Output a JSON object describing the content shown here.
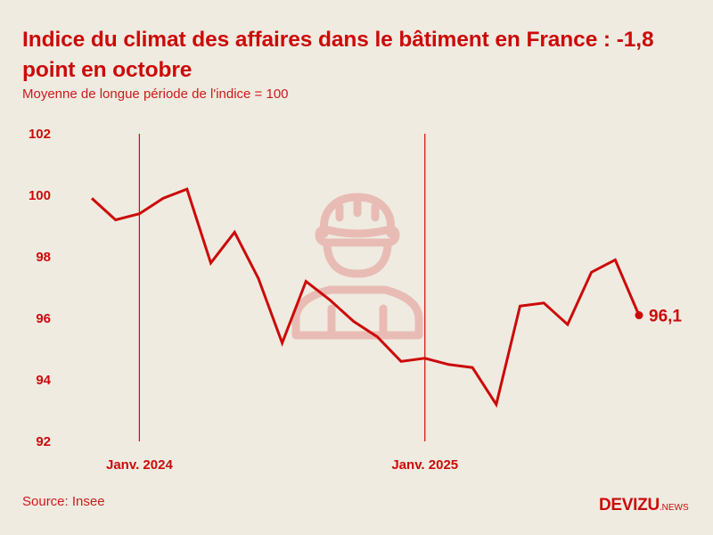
{
  "header": {
    "title": "Indice du climat des affaires dans le bâtiment en France : -1,8 point en octobre",
    "subtitle": "Moyenne de longue période de l'indice = 100"
  },
  "footer": {
    "source": "Source: Insee",
    "logo_main": "DEVIZU",
    "logo_suffix": ".NEWS"
  },
  "decoration": {
    "icon": "construction-worker-icon"
  },
  "colors": {
    "accent": "#cc0a0a",
    "background": "#efebe1",
    "icon_tint": "#e8bcb4"
  },
  "chart_data": {
    "type": "line",
    "title": "Indice du climat des affaires dans le bâtiment en France : -1,8 point en octobre",
    "subtitle": "Moyenne de longue période de l'indice = 100",
    "xlabel": "",
    "ylabel": "",
    "ylim": [
      92,
      102
    ],
    "yticks": [
      102,
      100,
      98,
      96,
      94,
      92
    ],
    "ytick_labels": [
      "102",
      "100",
      "98",
      "96",
      "94",
      "92"
    ],
    "x": [
      "2023-11",
      "2023-12",
      "2024-01",
      "2024-02",
      "2024-03",
      "2024-04",
      "2024-05",
      "2024-06",
      "2024-07",
      "2024-08",
      "2024-09",
      "2024-10",
      "2024-11",
      "2024-12",
      "2025-01",
      "2025-02",
      "2025-03",
      "2025-04",
      "2025-05",
      "2025-06",
      "2025-07",
      "2025-08",
      "2025-09",
      "2025-10"
    ],
    "xtick_markers": [
      {
        "x": "2024-01",
        "label": "Janv. 2024"
      },
      {
        "x": "2025-01",
        "label": "Janv. 2025"
      }
    ],
    "series": [
      {
        "name": "Indice du climat des affaires dans le bâtiment",
        "values": [
          99.9,
          99.2,
          99.4,
          99.9,
          100.2,
          97.8,
          98.8,
          97.3,
          95.2,
          97.2,
          96.6,
          95.9,
          95.4,
          94.6,
          94.7,
          94.5,
          94.4,
          93.2,
          96.4,
          96.5,
          95.8,
          97.5,
          97.9,
          96.1
        ],
        "color": "#cc0a0a"
      }
    ],
    "annotations": [
      {
        "x": "2025-10",
        "value": 96.1,
        "label": "96,1"
      }
    ],
    "grid": false,
    "legend": "none",
    "source": "Source: Insee"
  }
}
